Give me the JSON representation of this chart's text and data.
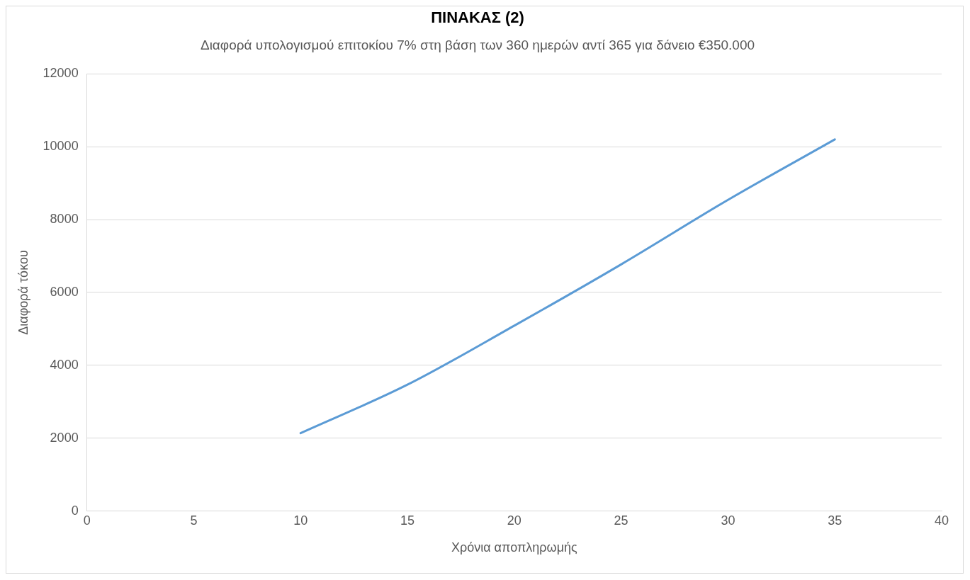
{
  "chart_data": {
    "type": "line",
    "title": "ΠΙΝΑΚΑΣ (2)",
    "subtitle": "Διαφορά υπολογισμού επιτοκίου 7% στη βάση των 360 ημερών αντί 365 για δάνειο €350.000",
    "xlabel": "Χρόνια αποπληρωμής",
    "ylabel": "Διαφορά τόκου",
    "x": [
      10,
      15,
      20,
      25,
      30,
      35
    ],
    "series": [
      {
        "color": "#5b9bd5",
        "values": [
          2140,
          3470,
          5090,
          6770,
          8540,
          10200
        ]
      }
    ],
    "xlim": [
      0,
      40
    ],
    "xticks": [
      0,
      5,
      10,
      15,
      20,
      25,
      30,
      35,
      40
    ],
    "ylim": [
      0,
      12000
    ],
    "yticks": [
      0,
      2000,
      4000,
      6000,
      8000,
      10000,
      12000
    ],
    "grid": "y",
    "legend": false,
    "marker": "none",
    "line_style": "solid"
  }
}
